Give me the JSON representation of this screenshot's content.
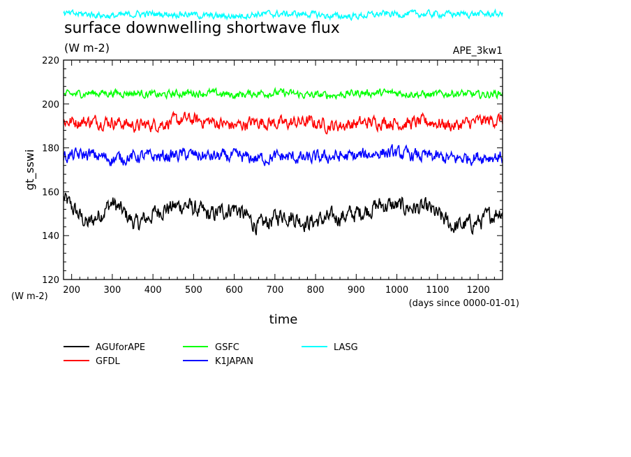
{
  "chart_data": {
    "type": "line",
    "title": "surface downwelling shortwave flux",
    "units": "(W m-2)",
    "experiment": "APE_3kw1",
    "xlabel": "time",
    "x_units": "(days since 0000-01-01)",
    "ylabel": "gt_sswi",
    "y_units": "(W m-2)",
    "xlim": [
      180,
      1260
    ],
    "ylim": [
      120,
      220
    ],
    "x_ticks": [
      "200",
      "300",
      "400",
      "500",
      "600",
      "700",
      "800",
      "900",
      "1000",
      "1100",
      "1200"
    ],
    "y_ticks": [
      "120",
      "140",
      "160",
      "180",
      "200",
      "220"
    ],
    "legend_position": "bottom",
    "series": [
      {
        "name": "AGUforAPE",
        "color": "#000000",
        "x": [
          180,
          240,
          300,
          360,
          420,
          480,
          540,
          600,
          660,
          720,
          780,
          840,
          900,
          960,
          1020,
          1080,
          1140,
          1200,
          1260
        ],
        "values": [
          157,
          145,
          155,
          145,
          152,
          154,
          149,
          153,
          144,
          150,
          146,
          148,
          150,
          154,
          153,
          152,
          144,
          146,
          152
        ]
      },
      {
        "name": "GFDL",
        "color": "#ff0000",
        "x": [
          180,
          240,
          300,
          360,
          420,
          480,
          540,
          600,
          660,
          720,
          780,
          840,
          900,
          960,
          1020,
          1080,
          1140,
          1200,
          1260
        ],
        "values": [
          192,
          192,
          192,
          190,
          191,
          193,
          192,
          190,
          192,
          191,
          192,
          190,
          191,
          192,
          191,
          192,
          190,
          192,
          193
        ]
      },
      {
        "name": "GSFC",
        "color": "#00ff00",
        "x": [
          180,
          240,
          300,
          360,
          420,
          480,
          540,
          600,
          660,
          720,
          780,
          840,
          900,
          960,
          1020,
          1080,
          1140,
          1200,
          1260
        ],
        "values": [
          204,
          205,
          205,
          205,
          204,
          205,
          205,
          204,
          205,
          205,
          204,
          204,
          205,
          205,
          205,
          204,
          205,
          204,
          205
        ]
      },
      {
        "name": "K1JAPAN",
        "color": "#0000ff",
        "x": [
          180,
          240,
          300,
          360,
          420,
          480,
          540,
          600,
          660,
          720,
          780,
          840,
          900,
          960,
          1020,
          1080,
          1140,
          1200,
          1260
        ],
        "values": [
          176,
          177,
          175,
          176,
          176,
          177,
          176,
          176,
          175,
          176,
          175,
          176,
          176,
          178,
          177,
          176,
          175,
          176,
          176
        ]
      },
      {
        "name": "LASG",
        "color": "#00ffff",
        "x": [
          180,
          240,
          300,
          360,
          420,
          480,
          540,
          600,
          660,
          720,
          780,
          840,
          900,
          960,
          1020,
          1080,
          1140,
          1200,
          1260
        ],
        "values": [
          241,
          241,
          240,
          241,
          241,
          241,
          240,
          240,
          241,
          241,
          241,
          240,
          240,
          241,
          241,
          241,
          241,
          241,
          241
        ]
      }
    ]
  }
}
